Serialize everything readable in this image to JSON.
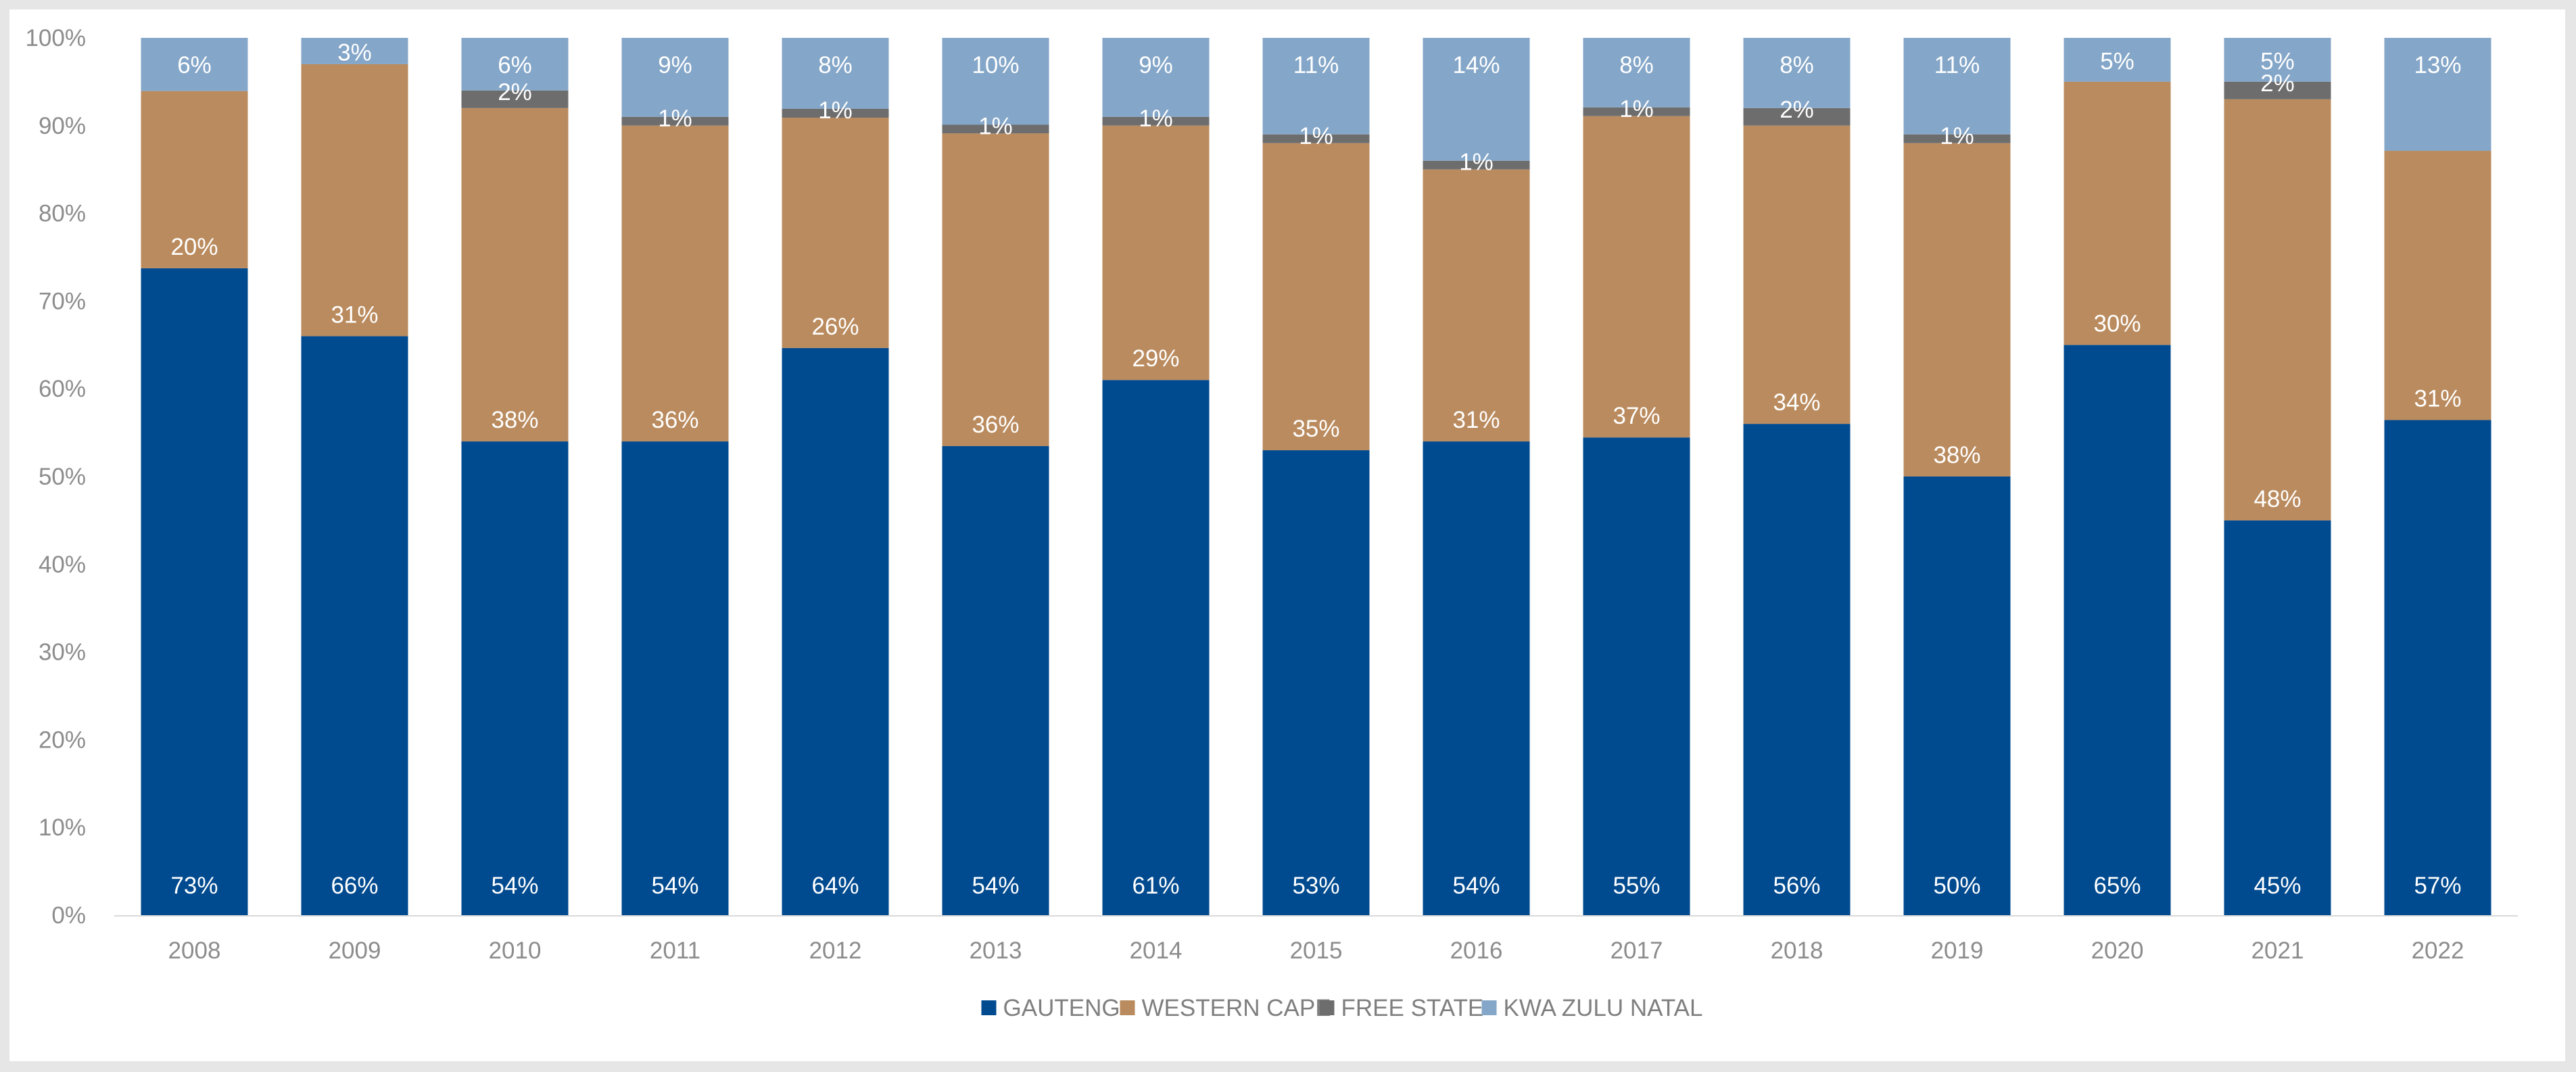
{
  "chart_data": {
    "type": "bar",
    "stacked": true,
    "categories": [
      "2008",
      "2009",
      "2010",
      "2011",
      "2012",
      "2013",
      "2014",
      "2015",
      "2016",
      "2017",
      "2018",
      "2019",
      "2020",
      "2021",
      "2022"
    ],
    "series": [
      {
        "name": "GAUTENG",
        "color": "#004a8f",
        "values": [
          73,
          66,
          54,
          54,
          64,
          54,
          61,
          53,
          54,
          55,
          56,
          50,
          65,
          45,
          57
        ],
        "labels": [
          "73%",
          "66%",
          "54%",
          "54%",
          "64%",
          "54%",
          "61%",
          "53%",
          "54%",
          "55%",
          "56%",
          "50%",
          "65%",
          "45%",
          "57%"
        ]
      },
      {
        "name": "WESTERN CAPE",
        "color": "#ba8b5e",
        "values": [
          20,
          31,
          38,
          36,
          26,
          36,
          29,
          35,
          31,
          37,
          34,
          38,
          30,
          48,
          31
        ],
        "labels": [
          "20%",
          "31%",
          "38%",
          "36%",
          "26%",
          "36%",
          "29%",
          "35%",
          "31%",
          "37%",
          "34%",
          "38%",
          "30%",
          "48%",
          "31%"
        ]
      },
      {
        "name": "FREE STATE",
        "color": "#6d6d6d",
        "values": [
          0,
          0,
          2,
          1,
          1,
          1,
          1,
          1,
          1,
          1,
          2,
          1,
          0,
          2,
          0
        ],
        "labels": [
          "",
          "",
          "2%",
          "1%",
          "1%",
          "1%",
          "1%",
          "1%",
          "1%",
          "1%",
          "2%",
          "1%",
          "",
          "2%",
          ""
        ]
      },
      {
        "name": "KWA ZULU NATAL",
        "color": "#84a6c8",
        "values": [
          6,
          3,
          6,
          9,
          8,
          10,
          9,
          11,
          14,
          8,
          8,
          11,
          5,
          5,
          13
        ],
        "labels": [
          "6%",
          "3%",
          "6%",
          "9%",
          "8%",
          "10%",
          "9%",
          "11%",
          "14%",
          "8%",
          "8%",
          "11%",
          "5%",
          "5%",
          "13%"
        ]
      }
    ],
    "ylim": [
      0,
      100
    ],
    "yticks": [
      "0%",
      "10%",
      "20%",
      "30%",
      "40%",
      "50%",
      "60%",
      "70%",
      "80%",
      "90%",
      "100%"
    ],
    "grid": false,
    "legend": "bottom-center",
    "title": "",
    "xlabel": "",
    "ylabel": ""
  }
}
